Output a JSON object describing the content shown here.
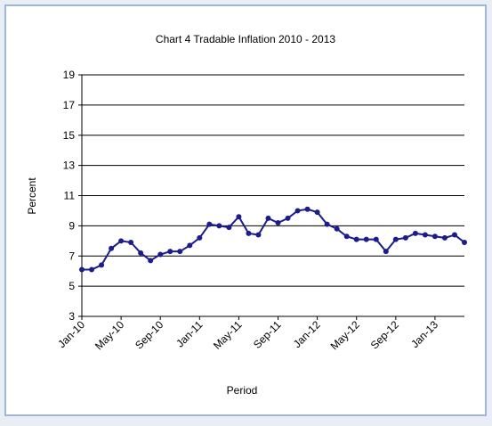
{
  "chart_data": {
    "type": "line",
    "title": "Chart 4 Tradable Inflation 2010 - 2013",
    "x_label": "Period",
    "y_label": "Percent",
    "categories": [
      "Jan-10",
      null,
      null,
      null,
      "May-10",
      null,
      null,
      null,
      "Sep-10",
      null,
      null,
      null,
      "Jan-11",
      null,
      null,
      null,
      "May-11",
      null,
      null,
      null,
      "Sep-11",
      null,
      null,
      null,
      "Jan-12",
      null,
      null,
      null,
      "May-12",
      null,
      null,
      null,
      "Sep-12",
      null,
      null,
      null,
      "Jan-13",
      null,
      null,
      null
    ],
    "series": [
      {
        "name": "Tradable Inflation",
        "color": "#1c1c8c",
        "values": [
          6.1,
          6.1,
          6.4,
          7.5,
          8.0,
          7.9,
          7.2,
          6.7,
          7.1,
          7.3,
          7.3,
          7.7,
          8.2,
          9.1,
          9.0,
          8.9,
          9.6,
          8.5,
          8.4,
          9.5,
          9.2,
          9.5,
          10.0,
          10.1,
          9.9,
          9.1,
          8.8,
          8.3,
          8.1,
          8.1,
          8.1,
          7.3,
          8.1,
          8.2,
          8.5,
          8.4,
          8.3,
          8.2,
          8.4,
          7.9
        ]
      }
    ],
    "ylim": [
      3,
      19
    ],
    "yticks": [
      3,
      5,
      7,
      9,
      11,
      13,
      15,
      17,
      19
    ],
    "grid": true
  }
}
